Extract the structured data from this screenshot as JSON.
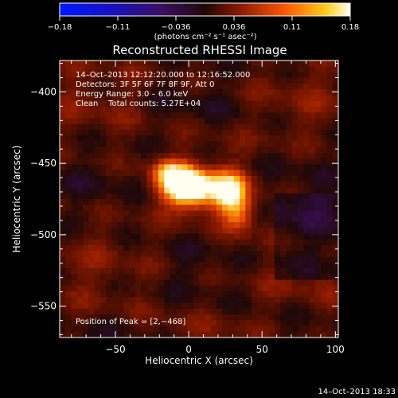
{
  "chart_data": {
    "type": "heatmap",
    "title": "Reconstructed RHESSI Image",
    "xlabel": "Heliocentric X (arcsec)",
    "ylabel": "Heliocentric Y (arcsec)",
    "xlim": [
      -88,
      102
    ],
    "ylim": [
      -572,
      -378
    ],
    "x_ticks": [
      -50,
      0,
      50,
      100
    ],
    "y_ticks": [
      -400,
      -450,
      -500,
      -550
    ],
    "x_tick_labels": [
      "−50",
      "0",
      "50",
      "100"
    ],
    "y_tick_labels": [
      "−400",
      "−450",
      "−500",
      "−550"
    ],
    "colorbar": {
      "min": -0.18,
      "max": 0.18,
      "tick_labels": [
        "−0.18",
        "−0.11",
        "−0.036",
        "0.036",
        "0.11",
        "0.18"
      ],
      "units_label": "(photons cm⁻² s⁻¹ asec⁻²)"
    },
    "annotations": [
      "14–Oct–2013 12:12:20.000 to 12:16:52.000",
      "Detectors: 3F 5F 6F 7F 8F 9F, Att 0",
      "Energy Range: 3.0 – 6.0 keV",
      "Clean    Total counts: 5.27E+04"
    ],
    "peak_label": "Position of Peak = [2,−468]",
    "peak": [
      2,
      -468
    ],
    "sources": [
      {
        "x": 2,
        "y": -468,
        "sx": 12,
        "sy": 9,
        "amp": 0.18
      },
      {
        "x": -8,
        "y": -462,
        "sx": 10,
        "sy": 8,
        "amp": 0.09
      },
      {
        "x": 28,
        "y": -470,
        "sx": 9,
        "sy": 10,
        "amp": 0.14
      },
      {
        "x": 35,
        "y": -486,
        "sx": 8,
        "sy": 9,
        "amp": 0.07
      },
      {
        "x": -15,
        "y": -455,
        "sx": 8,
        "sy": 6,
        "amp": 0.05
      }
    ],
    "background_level": 0.04
  },
  "footer_timestamp": "14–Oct–2013 18:33"
}
